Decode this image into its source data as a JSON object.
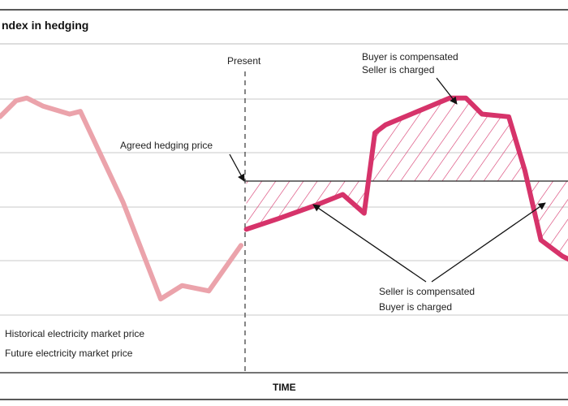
{
  "chart_data": {
    "type": "line",
    "title": "ndex in hedging",
    "xlabel": "TIME",
    "ylabel": "",
    "grid": true,
    "legend": "bottom-left",
    "present_label": "Present",
    "agreed_price_label": "Agreed hedging price",
    "agreed_price": 0,
    "annotations": {
      "buyer_compensated": [
        "Buyer is compensated",
        "Seller is charged"
      ],
      "seller_compensated": [
        "Seller is compensated",
        "Buyer is charged"
      ]
    },
    "series": [
      {
        "name": "Historical electricity market price",
        "color": "#eba3ab",
        "x": [
          0,
          3,
          5,
          8,
          13,
          15,
          23,
          30,
          34,
          39,
          45
        ],
        "y": [
          1.2,
          1.5,
          1.55,
          1.4,
          1.25,
          1.3,
          -0.4,
          -2.2,
          -1.95,
          -2.05,
          -1.2
        ]
      },
      {
        "name": "Future electricity market price",
        "color": "#d6336a",
        "x": [
          46,
          52,
          59,
          64,
          68,
          70,
          72,
          78,
          84,
          87,
          90,
          95,
          98,
          101,
          105,
          108
        ],
        "y": [
          -0.9,
          -0.7,
          -0.45,
          -0.25,
          -0.6,
          0.9,
          1.05,
          1.3,
          1.55,
          1.55,
          1.25,
          1.2,
          0.2,
          -1.1,
          -1.4,
          -1.55
        ]
      }
    ]
  }
}
